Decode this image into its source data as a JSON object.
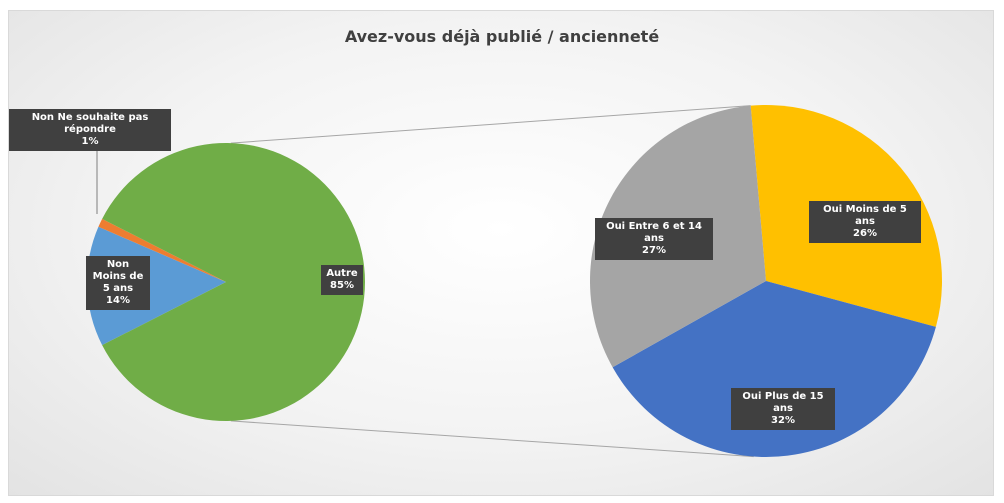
{
  "chart_data": [
    {
      "type": "pie",
      "title": "Avez-vous déjà publié / ancienneté",
      "categories": [
        "Non Moins de 5 ans",
        "Non Ne souhaite pas répondre",
        "Autre"
      ],
      "values": [
        14,
        1,
        85
      ],
      "value_labels": [
        "14%",
        "1%",
        "85%"
      ],
      "colors": [
        "#5b9bd5",
        "#ed7d31",
        "#70ad47"
      ]
    },
    {
      "type": "pie",
      "categories": [
        "Oui Moins de 5 ans",
        "Oui Plus de 15 ans",
        "Oui Entre 6 et 14 ans"
      ],
      "values": [
        26,
        32,
        27
      ],
      "value_labels": [
        "26%",
        "32%",
        "27%"
      ],
      "colors": [
        "#ffc000",
        "#4472c4",
        "#a5a5a5"
      ]
    }
  ]
}
